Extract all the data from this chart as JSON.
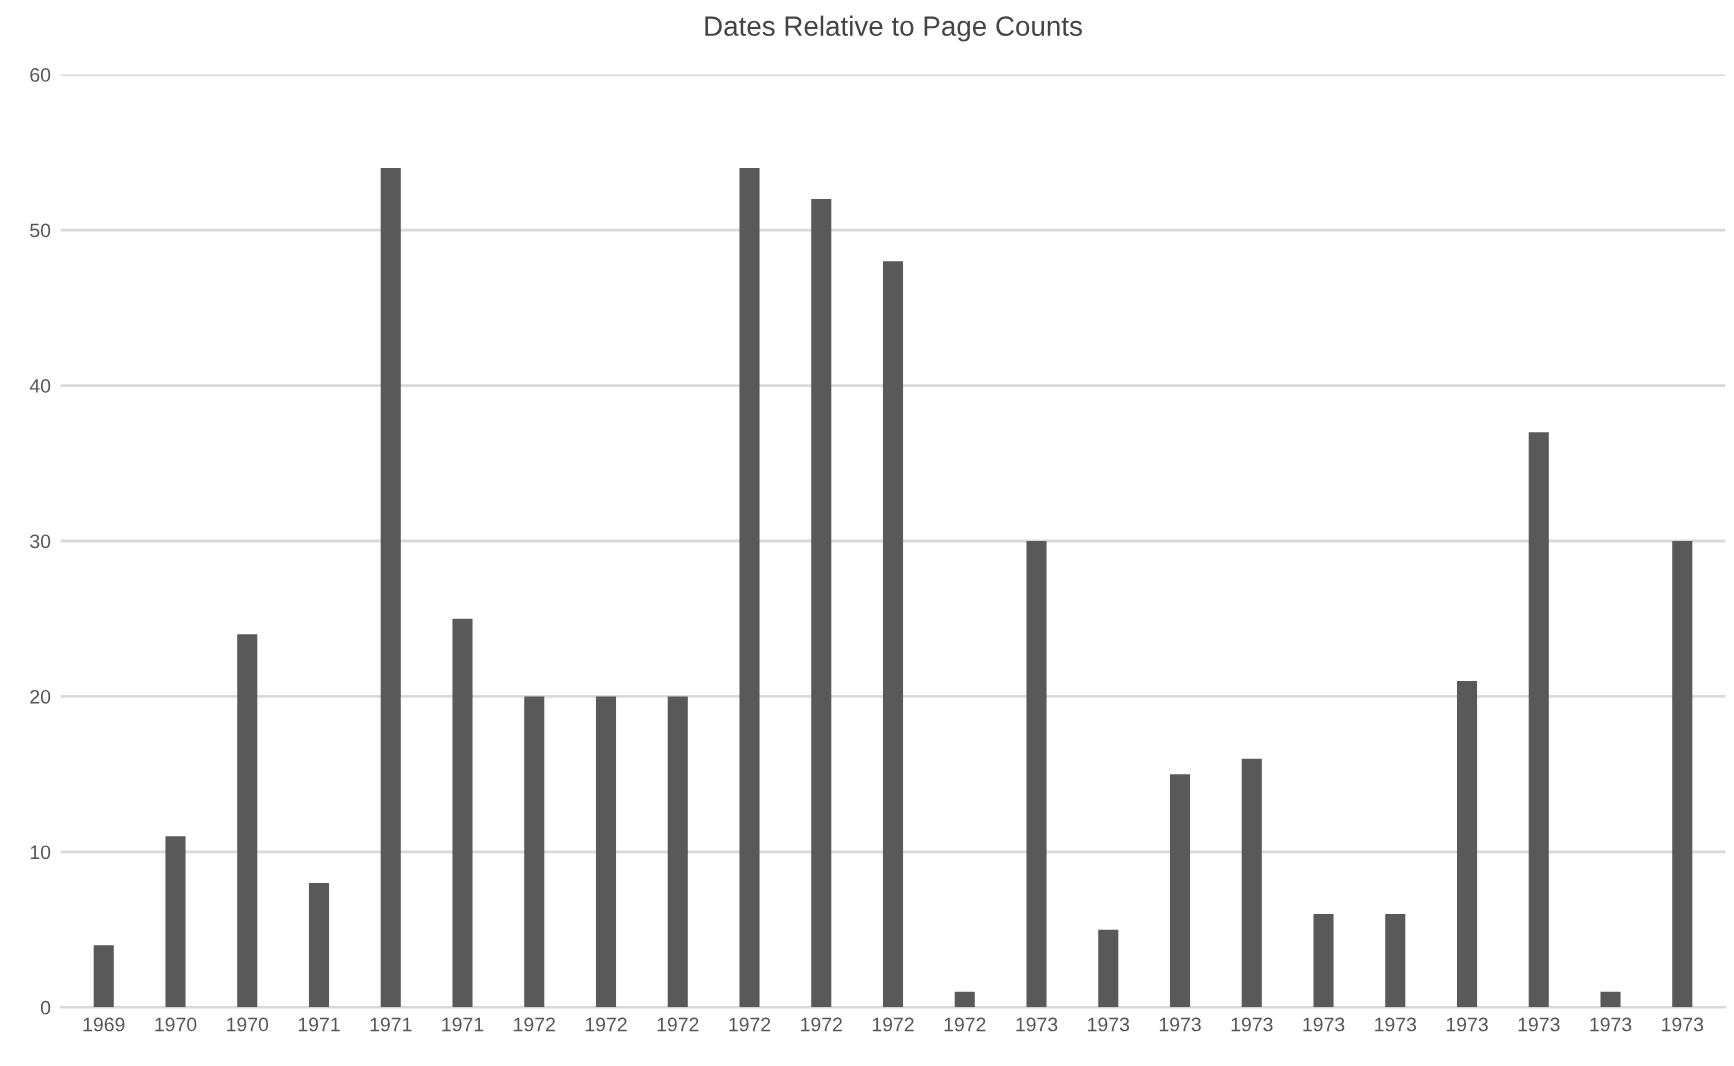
{
  "chart_data": {
    "type": "bar",
    "title": "Dates Relative to Page Counts",
    "categories": [
      "1969",
      "1970",
      "1970",
      "1971",
      "1971",
      "1971",
      "1972",
      "1972",
      "1972",
      "1972",
      "1972",
      "1972",
      "1972",
      "1973",
      "1973",
      "1973",
      "1973",
      "1973",
      "1973",
      "1973",
      "1973",
      "1973",
      "1973"
    ],
    "values": [
      4,
      11,
      24,
      8,
      54,
      25,
      20,
      20,
      20,
      54,
      52,
      48,
      1,
      30,
      5,
      15,
      16,
      6,
      6,
      21,
      37,
      1,
      30
    ],
    "color": "#595959",
    "ylim": [
      0,
      60
    ],
    "yticks": [
      0,
      10,
      20,
      30,
      40,
      50,
      60
    ],
    "grid": "y",
    "legend": false
  }
}
